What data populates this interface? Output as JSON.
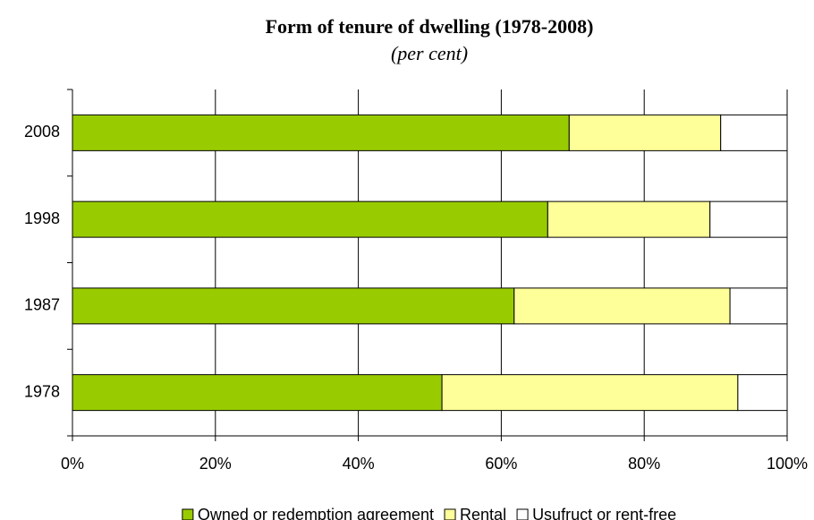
{
  "chart_data": {
    "type": "stacked_barh",
    "title": "Form of tenure of dwelling (1978-2008)",
    "subtitle": "(per cent)",
    "categories": [
      "1978",
      "1987",
      "1998",
      "2008"
    ],
    "series": [
      {
        "name": "Owned or redemption agreement",
        "color": "#99cc00",
        "values": [
          51.7,
          61.8,
          66.5,
          69.5
        ]
      },
      {
        "name": "Rental",
        "color": "#ffff99",
        "values": [
          41.4,
          30.2,
          22.7,
          21.2
        ]
      },
      {
        "name": "Usufruct or rent-free",
        "color": "#ffffff",
        "values": [
          6.9,
          8.0,
          10.8,
          9.3
        ]
      }
    ],
    "xlim": [
      0,
      100
    ],
    "xticks": [
      {
        "value": 0,
        "label": "0%"
      },
      {
        "value": 20,
        "label": "20%"
      },
      {
        "value": 40,
        "label": "40%"
      },
      {
        "value": 60,
        "label": "60%"
      },
      {
        "value": 80,
        "label": "80%"
      },
      {
        "value": 100,
        "label": "100%"
      }
    ],
    "grid": true,
    "legend": "bottom"
  }
}
